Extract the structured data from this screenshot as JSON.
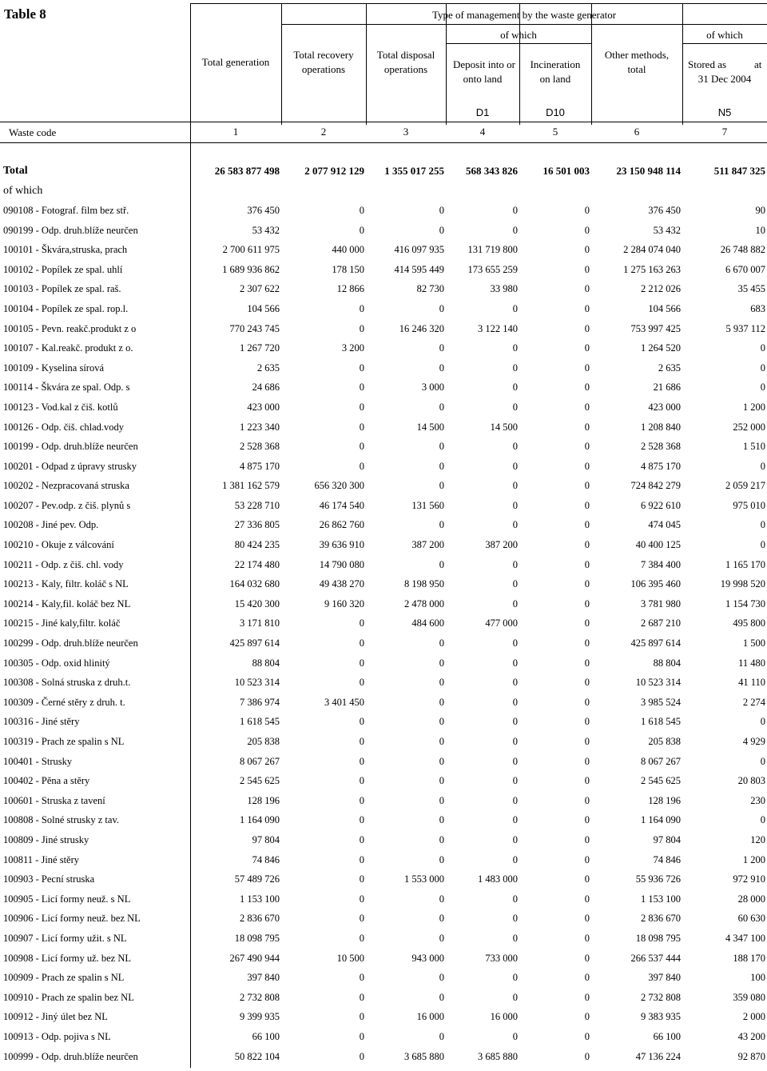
{
  "title": "Table 8",
  "header": {
    "type_of_management": "Type of management by the waste generator",
    "of_which_left": "of which",
    "of_which_right": "of which",
    "col_total_generation": "Total generation",
    "col_total_recovery_1": "Total recovery",
    "col_total_recovery_2": "operations",
    "col_total_disposal_1": "Total disposal",
    "col_total_disposal_2": "operations",
    "col_deposit_1": "Deposit into or",
    "col_deposit_2": "onto land",
    "col_incineration_1": "Incineration",
    "col_incineration_2": "on land",
    "col_other_1": "Other methods,",
    "col_other_2": "total",
    "col_stored_1": "Stored as",
    "col_stored_at": "at",
    "col_stored_2": "31 Dec 2004",
    "code_d1": "D1",
    "code_d10": "D10",
    "code_n5": "N5",
    "waste_code": "Waste code",
    "nums": [
      "1",
      "2",
      "3",
      "4",
      "5",
      "6",
      "7"
    ]
  },
  "total_row": {
    "label": "Total",
    "values": [
      "26 583 877 498",
      "2 077 912 129",
      "1 355 017 255",
      "568 343 826",
      "16 501 003",
      "23 150 948 114",
      "511 847 325"
    ]
  },
  "of_which_label": "of which",
  "rows": [
    {
      "code": "090108 - Fotograf. film bez stř.",
      "values": [
        "376 450",
        "0",
        "0",
        "0",
        "0",
        "376 450",
        "90"
      ]
    },
    {
      "code": "090199 - Odp. druh.blíže neurčen",
      "values": [
        "53 432",
        "0",
        "0",
        "0",
        "0",
        "53 432",
        "10"
      ]
    },
    {
      "code": "100101 - Škvára,struska, prach",
      "values": [
        "2 700 611 975",
        "440 000",
        "416 097 935",
        "131 719 800",
        "0",
        "2 284 074 040",
        "26 748 882"
      ]
    },
    {
      "code": "100102 - Popílek ze spal. uhlí",
      "values": [
        "1 689 936 862",
        "178 150",
        "414 595 449",
        "173 655 259",
        "0",
        "1 275 163 263",
        "6 670 007"
      ]
    },
    {
      "code": "100103 - Popílek ze spal. raš.",
      "values": [
        "2 307 622",
        "12 866",
        "82 730",
        "33 980",
        "0",
        "2 212 026",
        "35 455"
      ]
    },
    {
      "code": "100104 - Popílek ze spal. rop.l.",
      "values": [
        "104 566",
        "0",
        "0",
        "0",
        "0",
        "104 566",
        "683"
      ]
    },
    {
      "code": "100105 - Pevn. reakč.produkt z o",
      "values": [
        "770 243 745",
        "0",
        "16 246 320",
        "3 122 140",
        "0",
        "753 997 425",
        "5 937 112"
      ]
    },
    {
      "code": "100107 - Kal.reakč. produkt z o.",
      "values": [
        "1 267 720",
        "3 200",
        "0",
        "0",
        "0",
        "1 264 520",
        "0"
      ]
    },
    {
      "code": "100109 - Kyselina sírová",
      "values": [
        "2 635",
        "0",
        "0",
        "0",
        "0",
        "2 635",
        "0"
      ]
    },
    {
      "code": "100114 - Škvára ze spal. Odp. s",
      "values": [
        "24 686",
        "0",
        "3 000",
        "0",
        "0",
        "21 686",
        "0"
      ]
    },
    {
      "code": "100123 - Vod.kal z čiš. kotlů",
      "values": [
        "423 000",
        "0",
        "0",
        "0",
        "0",
        "423 000",
        "1 200"
      ]
    },
    {
      "code": "100126 - Odp. čiš. chlad.vody",
      "values": [
        "1 223 340",
        "0",
        "14 500",
        "14 500",
        "0",
        "1 208 840",
        "252 000"
      ]
    },
    {
      "code": "100199 - Odp. druh.blíže neurčen",
      "values": [
        "2 528 368",
        "0",
        "0",
        "0",
        "0",
        "2 528 368",
        "1 510"
      ]
    },
    {
      "code": "100201 - Odpad z úpravy strusky",
      "values": [
        "4 875 170",
        "0",
        "0",
        "0",
        "0",
        "4 875 170",
        "0"
      ]
    },
    {
      "code": "100202 - Nezpracovaná struska",
      "values": [
        "1 381 162 579",
        "656 320 300",
        "0",
        "0",
        "0",
        "724 842 279",
        "2 059 217"
      ]
    },
    {
      "code": "100207 - Pev.odp. z čiš. plynů s",
      "values": [
        "53 228 710",
        "46 174 540",
        "131 560",
        "0",
        "0",
        "6 922 610",
        "975 010"
      ]
    },
    {
      "code": "100208 - Jiné pev. Odp.",
      "values": [
        "27 336 805",
        "26 862 760",
        "0",
        "0",
        "0",
        "474 045",
        "0"
      ]
    },
    {
      "code": "100210 - Okuje z válcování",
      "values": [
        "80 424 235",
        "39 636 910",
        "387 200",
        "387 200",
        "0",
        "40 400 125",
        "0"
      ]
    },
    {
      "code": "100211 - Odp. z čiš. chl. vody",
      "values": [
        "22 174 480",
        "14 790 080",
        "0",
        "0",
        "0",
        "7 384 400",
        "1 165 170"
      ]
    },
    {
      "code": "100213 - Kaly, filtr. koláč s NL",
      "values": [
        "164 032 680",
        "49 438 270",
        "8 198 950",
        "0",
        "0",
        "106 395 460",
        "19 998 520"
      ]
    },
    {
      "code": "100214 - Kaly,fil. koláč  bez NL",
      "values": [
        "15 420 300",
        "9 160 320",
        "2 478 000",
        "0",
        "0",
        "3 781 980",
        "1 154 730"
      ]
    },
    {
      "code": "100215 - Jiné kaly,filtr. koláč",
      "values": [
        "3 171 810",
        "0",
        "484 600",
        "477 000",
        "0",
        "2 687 210",
        "495 800"
      ]
    },
    {
      "code": "100299 - Odp. druh.blíže neurčen",
      "values": [
        "425 897 614",
        "0",
        "0",
        "0",
        "0",
        "425 897 614",
        "1 500"
      ]
    },
    {
      "code": "100305 - Odp. oxid hlinitý",
      "values": [
        "88 804",
        "0",
        "0",
        "0",
        "0",
        "88 804",
        "11 480"
      ]
    },
    {
      "code": "100308 - Solná struska z druh.t.",
      "values": [
        "10 523 314",
        "0",
        "0",
        "0",
        "0",
        "10 523 314",
        "41 110"
      ]
    },
    {
      "code": "100309 - Černé stěry z druh. t.",
      "values": [
        "7 386 974",
        "3 401 450",
        "0",
        "0",
        "0",
        "3 985 524",
        "2 274"
      ]
    },
    {
      "code": "100316 - Jiné stěry",
      "values": [
        "1 618 545",
        "0",
        "0",
        "0",
        "0",
        "1 618 545",
        "0"
      ]
    },
    {
      "code": "100319 - Prach ze spalin s NL",
      "values": [
        "205 838",
        "0",
        "0",
        "0",
        "0",
        "205 838",
        "4 929"
      ]
    },
    {
      "code": "100401 - Strusky",
      "values": [
        "8 067 267",
        "0",
        "0",
        "0",
        "0",
        "8 067 267",
        "0"
      ]
    },
    {
      "code": "100402 - Pěna a stěry",
      "values": [
        "2 545 625",
        "0",
        "0",
        "0",
        "0",
        "2 545 625",
        "20 803"
      ]
    },
    {
      "code": "100601 - Struska z tavení",
      "values": [
        "128 196",
        "0",
        "0",
        "0",
        "0",
        "128 196",
        "230"
      ]
    },
    {
      "code": "100808 - Solné strusky z tav.",
      "values": [
        "1 164 090",
        "0",
        "0",
        "0",
        "0",
        "1 164 090",
        "0"
      ]
    },
    {
      "code": "100809 - Jiné strusky",
      "values": [
        "97 804",
        "0",
        "0",
        "0",
        "0",
        "97 804",
        "120"
      ]
    },
    {
      "code": "100811 - Jiné stěry",
      "values": [
        "74 846",
        "0",
        "0",
        "0",
        "0",
        "74 846",
        "1 200"
      ]
    },
    {
      "code": "100903 - Pecní struska",
      "values": [
        "57 489 726",
        "0",
        "1 553 000",
        "1 483 000",
        "0",
        "55 936 726",
        "972 910"
      ]
    },
    {
      "code": "100905 - Licí formy neuž. s NL",
      "values": [
        "1 153 100",
        "0",
        "0",
        "0",
        "0",
        "1 153 100",
        "28 000"
      ]
    },
    {
      "code": "100906 - Licí formy neuž. bez NL",
      "values": [
        "2 836 670",
        "0",
        "0",
        "0",
        "0",
        "2 836 670",
        "60 630"
      ]
    },
    {
      "code": "100907 - Licí formy užit. s NL",
      "values": [
        "18 098 795",
        "0",
        "0",
        "0",
        "0",
        "18 098 795",
        "4 347 100"
      ]
    },
    {
      "code": "100908 - Licí formy už. bez NL",
      "values": [
        "267 490 944",
        "10 500",
        "943 000",
        "733 000",
        "0",
        "266 537 444",
        "188 170"
      ]
    },
    {
      "code": "100909 - Prach ze spalin s NL",
      "values": [
        "397 840",
        "0",
        "0",
        "0",
        "0",
        "397 840",
        "100"
      ]
    },
    {
      "code": "100910 - Prach ze spalin bez NL",
      "values": [
        "2 732 808",
        "0",
        "0",
        "0",
        "0",
        "2 732 808",
        "359 080"
      ]
    },
    {
      "code": "100912 - Jiný úlet bez NL",
      "values": [
        "9 399 935",
        "0",
        "16 000",
        "16 000",
        "0",
        "9 383 935",
        "2 000"
      ]
    },
    {
      "code": "100913 - Odp. pojiva s NL",
      "values": [
        "66 100",
        "0",
        "0",
        "0",
        "0",
        "66 100",
        "43 200"
      ]
    },
    {
      "code": "100999 - Odp. druh.blíže neurčen",
      "values": [
        "50 822 104",
        "0",
        "3 685 880",
        "3 685 880",
        "0",
        "47 136 224",
        "92 870"
      ]
    }
  ]
}
